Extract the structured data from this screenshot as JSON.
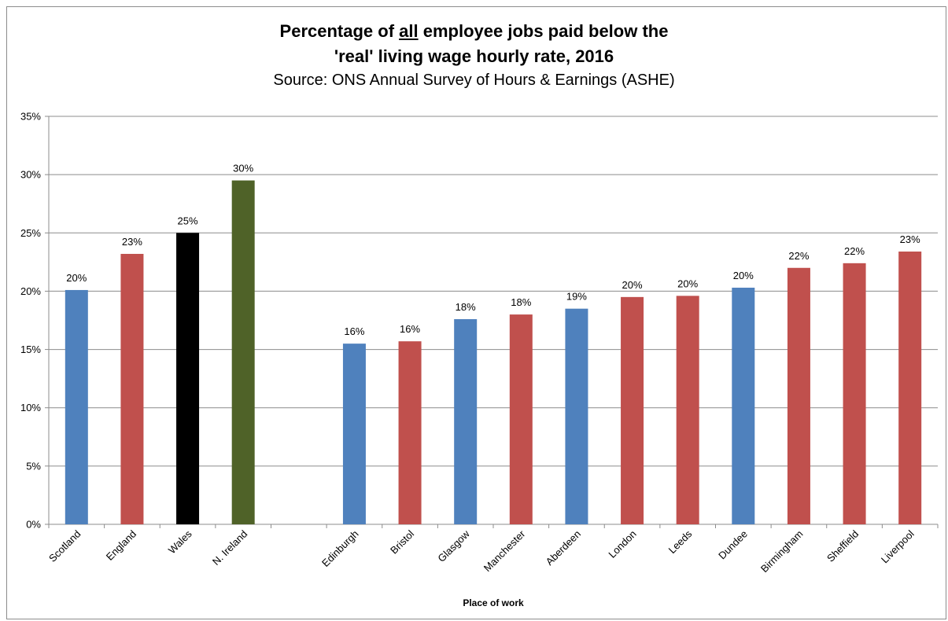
{
  "title": {
    "line1_before": "Percentage of ",
    "line1_underlined": "all",
    "line1_after": " employee jobs paid below the",
    "line2": "'real' living wage hourly rate, 2016",
    "subtitle": "Source: ONS Annual Survey of Hours & Earnings (ASHE)"
  },
  "chart_data": {
    "type": "bar",
    "title": "Percentage of all employee jobs paid below the 'real' living wage hourly rate, 2016",
    "subtitle": "Source: ONS Annual Survey of Hours & Earnings (ASHE)",
    "xlabel": "Place of work",
    "ylabel": "",
    "ylim": [
      0,
      35
    ],
    "y_ticks": [
      "0%",
      "5%",
      "10%",
      "15%",
      "20%",
      "25%",
      "30%",
      "35%"
    ],
    "grid": true,
    "legend": "none",
    "categories": [
      "Scotland",
      "England",
      "Wales",
      "N. Ireland",
      "",
      "Edinburgh",
      "Bristol",
      "Glasgow",
      "Manchester",
      "Aberdeen",
      "London",
      "Leeds",
      "Dundee",
      "Birmingham",
      "Sheffield",
      "Liverpool"
    ],
    "values": [
      20.1,
      23.2,
      25.0,
      29.5,
      null,
      15.5,
      15.7,
      17.6,
      18.0,
      18.5,
      19.5,
      19.6,
      20.3,
      22.0,
      22.4,
      23.4
    ],
    "data_labels": [
      "20%",
      "23%",
      "25%",
      "30%",
      "",
      "16%",
      "16%",
      "18%",
      "18%",
      "19%",
      "20%",
      "20%",
      "20%",
      "22%",
      "22%",
      "23%"
    ],
    "bar_colors": [
      "#4f81bd",
      "#c0504d",
      "#000000",
      "#4f6228",
      "",
      "#4f81bd",
      "#c0504d",
      "#4f81bd",
      "#c0504d",
      "#4f81bd",
      "#c0504d",
      "#c0504d",
      "#4f81bd",
      "#c0504d",
      "#c0504d",
      "#c0504d"
    ]
  }
}
